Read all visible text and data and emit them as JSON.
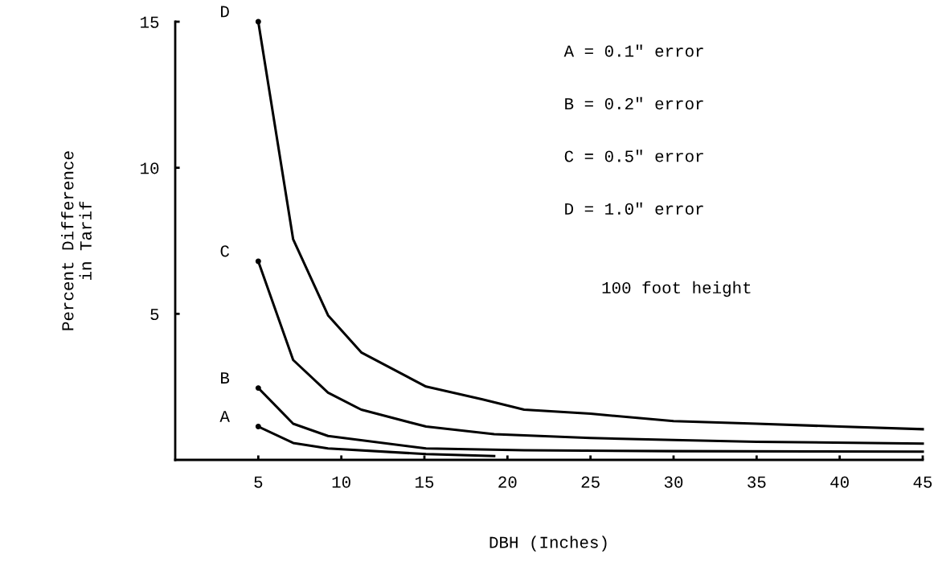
{
  "chart_data": {
    "type": "line",
    "xlabel": "DBH (Inches)",
    "ylabel": "Percent Difference\nin Tarif",
    "xlim": [
      0,
      45
    ],
    "ylim": [
      0,
      15
    ],
    "xticks": [
      5,
      10,
      15,
      20,
      25,
      30,
      35,
      40,
      45
    ],
    "yticks": [
      5,
      10,
      15
    ],
    "grid": false,
    "legend": false,
    "series": [
      {
        "name": "A",
        "color": "#000000",
        "x": [
          5,
          7.1,
          9.2,
          15.1,
          19.2
        ],
        "values": [
          1.14,
          0.58,
          0.39,
          0.2,
          0.13
        ]
      },
      {
        "name": "B",
        "color": "#000000",
        "x": [
          5,
          7.1,
          9.2,
          15.1,
          21,
          30,
          45
        ],
        "values": [
          2.46,
          1.24,
          0.82,
          0.39,
          0.33,
          0.3,
          0.28
        ]
      },
      {
        "name": "C",
        "color": "#000000",
        "x": [
          5,
          7.1,
          9.2,
          11.2,
          15.1,
          19.2,
          25,
          30,
          35,
          45
        ],
        "values": [
          6.8,
          3.42,
          2.3,
          1.72,
          1.14,
          0.88,
          0.75,
          0.68,
          0.62,
          0.56
        ]
      },
      {
        "name": "D",
        "color": "#000000",
        "x": [
          5,
          7.1,
          9.2,
          11.2,
          15.1,
          18.5,
          21,
          25,
          30,
          35,
          40,
          45
        ],
        "values": [
          15,
          7.55,
          4.95,
          3.68,
          2.51,
          2.07,
          1.72,
          1.58,
          1.33,
          1.24,
          1.14,
          1.05
        ]
      }
    ],
    "annotations": [
      "A = 0.1\" error",
      "B = 0.2\" error",
      "C = 0.5\" error",
      "D = 1.0\" error",
      "100 foot height"
    ]
  }
}
